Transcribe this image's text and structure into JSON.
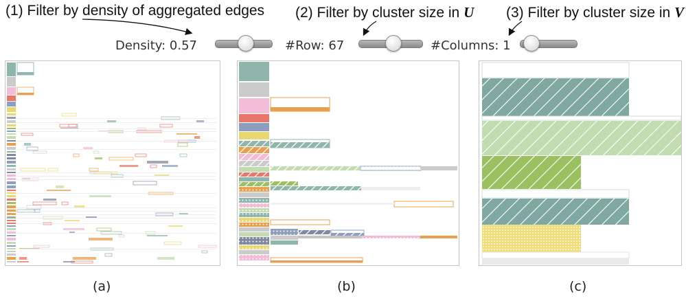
{
  "annotations": {
    "filter1": "(1) Filter by density of aggregated edges",
    "filter2_prefix": "(2) Filter by cluster size in ",
    "filter2_var": "U",
    "filter3_prefix": "(3) Filter by cluster size in ",
    "filter3_var": "V"
  },
  "controls": {
    "density": {
      "label": "Density: 0.57",
      "value": 0.57
    },
    "rows": {
      "label": "#Row: 67",
      "value": 67
    },
    "columns": {
      "label": "#Columns: 1",
      "value": 1
    }
  },
  "captions": {
    "a": "(a)",
    "b": "(b)",
    "c": "(c)"
  },
  "colors": {
    "teal": "#8fb5ad",
    "gray": "#cbcbcb",
    "pink": "#f2bcd6",
    "salmon": "#e6776a",
    "slate": "#8d9fbd",
    "yellow": "#e7d873",
    "orange": "#e8a050",
    "lightgreen": "#c3dbb0",
    "green": "#9bc062",
    "darkslate": "#8089a1"
  }
}
